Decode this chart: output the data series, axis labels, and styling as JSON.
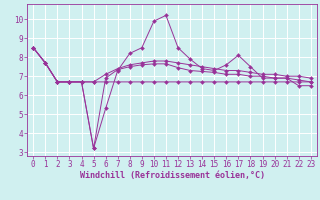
{
  "xlabel": "Windchill (Refroidissement éolien,°C)",
  "ylabel": "",
  "background_color": "#d0f0f0",
  "line_color": "#993399",
  "grid_color": "#ffffff",
  "xlim": [
    -0.5,
    23.5
  ],
  "ylim": [
    2.8,
    10.8
  ],
  "yticks": [
    3,
    4,
    5,
    6,
    7,
    8,
    9,
    10
  ],
  "xticks": [
    0,
    1,
    2,
    3,
    4,
    5,
    6,
    7,
    8,
    9,
    10,
    11,
    12,
    13,
    14,
    15,
    16,
    17,
    18,
    19,
    20,
    21,
    22,
    23
  ],
  "series": [
    [
      8.5,
      7.7,
      6.7,
      6.7,
      6.7,
      3.2,
      5.3,
      7.3,
      8.2,
      8.5,
      9.9,
      10.2,
      8.5,
      7.9,
      7.4,
      7.3,
      7.6,
      8.1,
      7.5,
      6.9,
      6.9,
      6.9,
      6.5,
      6.5
    ],
    [
      8.5,
      7.7,
      6.7,
      6.7,
      6.7,
      3.2,
      6.9,
      7.35,
      7.5,
      7.6,
      7.65,
      7.65,
      7.45,
      7.3,
      7.25,
      7.2,
      7.1,
      7.1,
      7.0,
      7.0,
      6.9,
      6.9,
      6.8,
      6.7
    ],
    [
      8.5,
      7.7,
      6.7,
      6.7,
      6.7,
      6.7,
      6.7,
      6.7,
      6.7,
      6.7,
      6.7,
      6.7,
      6.7,
      6.7,
      6.7,
      6.7,
      6.7,
      6.7,
      6.7,
      6.7,
      6.7,
      6.7,
      6.7,
      6.7
    ],
    [
      8.5,
      7.7,
      6.7,
      6.7,
      6.7,
      6.7,
      7.1,
      7.4,
      7.6,
      7.7,
      7.8,
      7.8,
      7.7,
      7.6,
      7.5,
      7.4,
      7.3,
      7.3,
      7.2,
      7.1,
      7.1,
      7.0,
      7.0,
      6.9
    ]
  ]
}
